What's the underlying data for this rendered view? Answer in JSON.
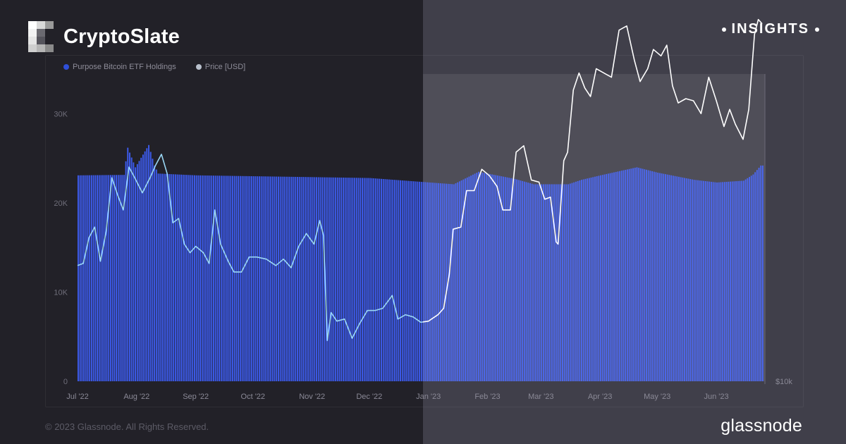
{
  "brand": {
    "name": "CryptoSlate",
    "logo_icon": "cryptoslate-logo-icon"
  },
  "badge": {
    "label": "INSIGHTS"
  },
  "footer": {
    "copyright": "© 2023 Glassnode. All Rights Reserved.",
    "logo_text": "glassnode"
  },
  "colors": {
    "bar": "#3d5cf0",
    "price_left": "#9ad7f5",
    "price_right": "#ffffff",
    "background_left": "#222128",
    "background_right": "#403f4a"
  },
  "chart_data": {
    "type": "bar",
    "legend": [
      {
        "label": "Purpose Bitcoin ETF Holdings",
        "color": "#2f4fd8"
      },
      {
        "label": "Price [USD]",
        "color": "#b8c0cc"
      }
    ],
    "x_ticks": [
      "Jul '22",
      "Aug '22",
      "Sep '22",
      "Oct '22",
      "Nov '22",
      "Dec '22",
      "Jan '23",
      "Feb '23",
      "Mar '23",
      "Apr '23",
      "May '23",
      "Jun '23"
    ],
    "y_left_ticks": [
      "0",
      "10K",
      "20K",
      "30K"
    ],
    "y_right_ticks": [
      "$10k"
    ],
    "ylim_left": [
      0,
      30000
    ],
    "x_range": [
      "2022-07-01",
      "2023-06-25"
    ],
    "series": [
      {
        "name": "Purpose Bitcoin ETF Holdings",
        "kind": "bar",
        "axis": "left",
        "points": [
          [
            "2022-07-01",
            23100
          ],
          [
            "2022-07-25",
            23150
          ],
          [
            "2022-07-27",
            26200
          ],
          [
            "2022-07-31",
            24000
          ],
          [
            "2022-08-07",
            26500
          ],
          [
            "2022-08-10",
            24200
          ],
          [
            "2022-08-12",
            23300
          ],
          [
            "2022-09-01",
            23100
          ],
          [
            "2022-10-01",
            23000
          ],
          [
            "2022-11-01",
            22900
          ],
          [
            "2022-12-01",
            22800
          ],
          [
            "2022-12-26",
            22400
          ],
          [
            "2023-01-14",
            22100
          ],
          [
            "2023-01-27",
            23500
          ],
          [
            "2023-02-15",
            22700
          ],
          [
            "2023-02-25",
            22100
          ],
          [
            "2023-03-15",
            22100
          ],
          [
            "2023-03-22",
            22600
          ],
          [
            "2023-04-03",
            23200
          ],
          [
            "2023-04-20",
            24000
          ],
          [
            "2023-05-01",
            23400
          ],
          [
            "2023-05-20",
            22600
          ],
          [
            "2023-06-01",
            22300
          ],
          [
            "2023-06-15",
            22500
          ],
          [
            "2023-06-20",
            23200
          ],
          [
            "2023-06-24",
            24200
          ]
        ]
      },
      {
        "name": "Price [USD]",
        "kind": "line",
        "axis": "right",
        "points": [
          [
            "2022-07-01",
            19200
          ],
          [
            "2022-07-04",
            19300
          ],
          [
            "2022-07-07",
            20500
          ],
          [
            "2022-07-10",
            21000
          ],
          [
            "2022-07-13",
            19400
          ],
          [
            "2022-07-16",
            20800
          ],
          [
            "2022-07-19",
            23300
          ],
          [
            "2022-07-22",
            22500
          ],
          [
            "2022-07-25",
            21800
          ],
          [
            "2022-07-28",
            23800
          ],
          [
            "2022-07-31",
            23300
          ],
          [
            "2022-08-04",
            22600
          ],
          [
            "2022-08-08",
            23300
          ],
          [
            "2022-08-11",
            23900
          ],
          [
            "2022-08-14",
            24400
          ],
          [
            "2022-08-17",
            23500
          ],
          [
            "2022-08-20",
            21200
          ],
          [
            "2022-08-23",
            21400
          ],
          [
            "2022-08-26",
            20200
          ],
          [
            "2022-08-29",
            19800
          ],
          [
            "2022-09-01",
            20100
          ],
          [
            "2022-09-05",
            19800
          ],
          [
            "2022-09-08",
            19300
          ],
          [
            "2022-09-11",
            21800
          ],
          [
            "2022-09-14",
            20200
          ],
          [
            "2022-09-18",
            19400
          ],
          [
            "2022-09-21",
            18900
          ],
          [
            "2022-09-25",
            18900
          ],
          [
            "2022-09-29",
            19600
          ],
          [
            "2022-10-03",
            19600
          ],
          [
            "2022-10-08",
            19500
          ],
          [
            "2022-10-13",
            19200
          ],
          [
            "2022-10-17",
            19500
          ],
          [
            "2022-10-21",
            19100
          ],
          [
            "2022-10-25",
            20100
          ],
          [
            "2022-10-29",
            20700
          ],
          [
            "2022-11-02",
            20200
          ],
          [
            "2022-11-05",
            21300
          ],
          [
            "2022-11-07",
            20600
          ],
          [
            "2022-11-09",
            15700
          ],
          [
            "2022-11-11",
            17000
          ],
          [
            "2022-11-14",
            16600
          ],
          [
            "2022-11-18",
            16700
          ],
          [
            "2022-11-22",
            15800
          ],
          [
            "2022-11-26",
            16500
          ],
          [
            "2022-11-30",
            17100
          ],
          [
            "2022-12-04",
            17100
          ],
          [
            "2022-12-08",
            17200
          ],
          [
            "2022-12-13",
            17800
          ],
          [
            "2022-12-16",
            16700
          ],
          [
            "2022-12-20",
            16900
          ],
          [
            "2022-12-24",
            16800
          ],
          [
            "2022-12-28",
            16550
          ],
          [
            "2023-01-01",
            16600
          ],
          [
            "2023-01-06",
            16900
          ],
          [
            "2023-01-09",
            17200
          ],
          [
            "2023-01-12",
            18800
          ],
          [
            "2023-01-14",
            20900
          ],
          [
            "2023-01-18",
            21000
          ],
          [
            "2023-01-21",
            22700
          ],
          [
            "2023-01-25",
            22700
          ],
          [
            "2023-01-29",
            23700
          ],
          [
            "2023-02-02",
            23400
          ],
          [
            "2023-02-06",
            22900
          ],
          [
            "2023-02-09",
            21800
          ],
          [
            "2023-02-13",
            21800
          ],
          [
            "2023-02-16",
            24500
          ],
          [
            "2023-02-20",
            24800
          ],
          [
            "2023-02-24",
            23200
          ],
          [
            "2023-02-28",
            23100
          ],
          [
            "2023-03-03",
            22300
          ],
          [
            "2023-03-06",
            22400
          ],
          [
            "2023-03-09",
            20300
          ],
          [
            "2023-03-10",
            20200
          ],
          [
            "2023-03-13",
            24100
          ],
          [
            "2023-03-15",
            24500
          ],
          [
            "2023-03-18",
            27400
          ],
          [
            "2023-03-21",
            28200
          ],
          [
            "2023-03-24",
            27500
          ],
          [
            "2023-03-27",
            27100
          ],
          [
            "2023-03-30",
            28400
          ],
          [
            "2023-04-03",
            28200
          ],
          [
            "2023-04-07",
            28000
          ],
          [
            "2023-04-11",
            30200
          ],
          [
            "2023-04-15",
            30400
          ],
          [
            "2023-04-19",
            28800
          ],
          [
            "2023-04-22",
            27800
          ],
          [
            "2023-04-26",
            28400
          ],
          [
            "2023-04-29",
            29300
          ],
          [
            "2023-05-03",
            29000
          ],
          [
            "2023-05-06",
            29500
          ],
          [
            "2023-05-09",
            27600
          ],
          [
            "2023-05-12",
            26800
          ],
          [
            "2023-05-16",
            27000
          ],
          [
            "2023-05-20",
            26900
          ],
          [
            "2023-05-24",
            26300
          ],
          [
            "2023-05-28",
            28000
          ],
          [
            "2023-06-01",
            26900
          ],
          [
            "2023-06-05",
            25700
          ],
          [
            "2023-06-08",
            26500
          ],
          [
            "2023-06-11",
            25800
          ],
          [
            "2023-06-15",
            25100
          ],
          [
            "2023-06-18",
            26500
          ],
          [
            "2023-06-21",
            30000
          ],
          [
            "2023-06-23",
            30700
          ],
          [
            "2023-06-25",
            30500
          ]
        ]
      }
    ]
  }
}
